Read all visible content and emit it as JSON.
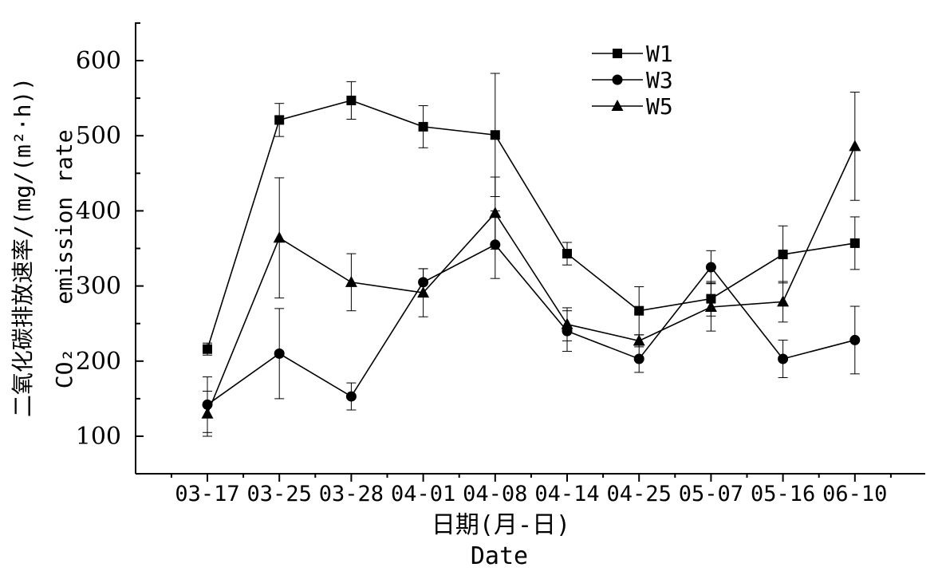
{
  "chart_data": {
    "type": "line",
    "categories": [
      "03-17",
      "03-25",
      "03-28",
      "04-01",
      "04-08",
      "04-14",
      "04-25",
      "05-07",
      "05-16",
      "06-10"
    ],
    "xlabel_cn": "日期(月-日)",
    "xlabel_en": "Date",
    "ylabel_cn": "二氧化碳排放速率/(mg/(m²·h))",
    "ylabel_en_1": "CO₂",
    "ylabel_en_2": "emission rate",
    "ylim": [
      50,
      650
    ],
    "yticks": [
      100,
      200,
      300,
      400,
      500,
      600
    ],
    "legend_position": "top-center",
    "grid": false,
    "series": [
      {
        "name": "W1",
        "marker": "square",
        "values": [
          216,
          521,
          547,
          512,
          501,
          343,
          267,
          283,
          342,
          357
        ],
        "errors": [
          8,
          22,
          25,
          28,
          82,
          15,
          32,
          23,
          38,
          35
        ]
      },
      {
        "name": "W3",
        "marker": "circle",
        "values": [
          142,
          210,
          153,
          305,
          355,
          240,
          203,
          325,
          203,
          228
        ],
        "errors": [
          37,
          60,
          18,
          18,
          45,
          27,
          18,
          22,
          25,
          45
        ]
      },
      {
        "name": "W5",
        "marker": "triangle",
        "values": [
          130,
          364,
          305,
          291,
          397,
          249,
          227,
          272,
          279,
          486
        ],
        "errors": [
          30,
          80,
          38,
          32,
          48,
          22,
          8,
          32,
          27,
          72
        ]
      }
    ]
  }
}
